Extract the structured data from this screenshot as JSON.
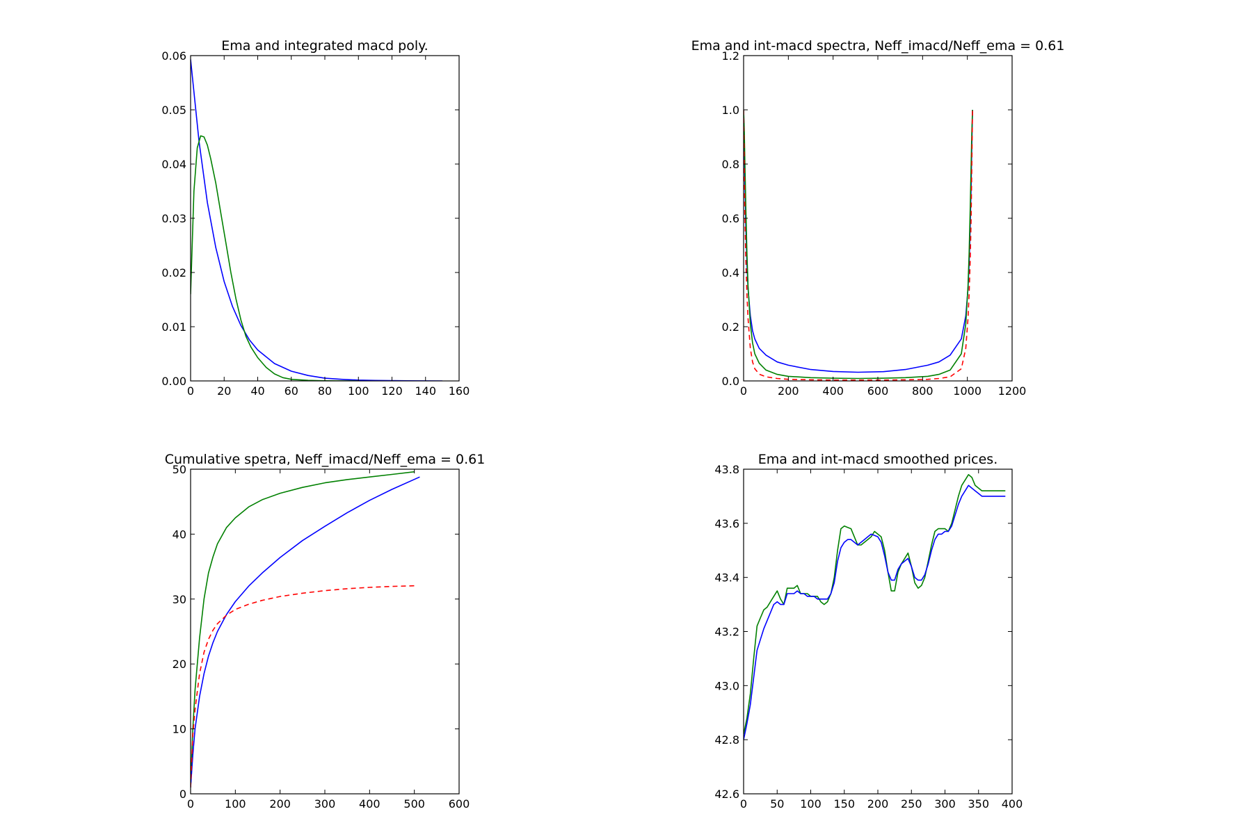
{
  "chart_data": [
    {
      "type": "line",
      "title": "Ema and integrated macd poly.",
      "xlabel": "",
      "ylabel": "",
      "xlim": [
        0,
        160
      ],
      "ylim": [
        0,
        0.06
      ],
      "xticks": [
        0,
        20,
        40,
        60,
        80,
        100,
        120,
        140,
        160
      ],
      "yticks": [
        0.0,
        0.01,
        0.02,
        0.03,
        0.04,
        0.05,
        0.06
      ],
      "xtick_labels": [
        "0",
        "20",
        "40",
        "60",
        "80",
        "100",
        "120",
        "140",
        "160"
      ],
      "ytick_labels": [
        "0.00",
        "0.01",
        "0.02",
        "0.03",
        "0.04",
        "0.05",
        "0.06"
      ],
      "grid": false,
      "series": [
        {
          "color": "#0000ff",
          "style": "solid",
          "x": [
            0,
            5,
            10,
            15,
            20,
            25,
            30,
            35,
            40,
            50,
            60,
            70,
            80,
            90,
            100,
            110,
            120,
            130,
            140,
            150
          ],
          "y": [
            0.0593,
            0.0442,
            0.0329,
            0.0246,
            0.0183,
            0.0137,
            0.0102,
            0.0076,
            0.0057,
            0.0032,
            0.0018,
            0.001,
            0.0005,
            0.0003,
            0.00016,
            9e-05,
            5e-05,
            3e-05,
            1e-05,
            0.0
          ]
        },
        {
          "color": "#008000",
          "style": "solid",
          "x": [
            0,
            2,
            4,
            6,
            8,
            10,
            12,
            15,
            18,
            21,
            24,
            27,
            30,
            33,
            36,
            40,
            45,
            50,
            55,
            60,
            70,
            80,
            90,
            100
          ],
          "y": [
            0.016,
            0.035,
            0.043,
            0.0452,
            0.045,
            0.0435,
            0.041,
            0.0365,
            0.031,
            0.0255,
            0.02,
            0.0152,
            0.0112,
            0.0082,
            0.0062,
            0.0043,
            0.0025,
            0.0013,
            0.0006,
            0.0003,
            0.0001,
            3e-05,
            1e-05,
            0.0
          ]
        }
      ]
    },
    {
      "type": "line",
      "title": "Ema and int-macd spectra, Neff_imacd/Neff_ema = 0.61",
      "xlabel": "",
      "ylabel": "",
      "xlim": [
        0,
        1200
      ],
      "ylim": [
        0,
        1.2
      ],
      "xticks": [
        0,
        200,
        400,
        600,
        800,
        1000,
        1200
      ],
      "yticks": [
        0.0,
        0.2,
        0.4,
        0.6,
        0.8,
        1.0,
        1.2
      ],
      "xtick_labels": [
        "0",
        "200",
        "400",
        "600",
        "800",
        "1000",
        "1200"
      ],
      "ytick_labels": [
        "0.0",
        "0.2",
        "0.4",
        "0.6",
        "0.8",
        "1.0",
        "1.2"
      ],
      "grid": false,
      "series": [
        {
          "color": "#0000ff",
          "style": "solid",
          "x": [
            0,
            3,
            6,
            10,
            15,
            20,
            30,
            40,
            50,
            70,
            100,
            150,
            200,
            300,
            400,
            511,
            623,
            723,
            823,
            873,
            923,
            973,
            993,
            1003,
            1008,
            1013,
            1017,
            1020,
            1023
          ],
          "y": [
            1.0,
            0.87,
            0.72,
            0.57,
            0.43,
            0.34,
            0.24,
            0.185,
            0.155,
            0.12,
            0.095,
            0.07,
            0.058,
            0.042,
            0.035,
            0.032,
            0.034,
            0.042,
            0.058,
            0.07,
            0.095,
            0.155,
            0.24,
            0.34,
            0.43,
            0.57,
            0.72,
            0.87,
            1.0
          ]
        },
        {
          "color": "#008000",
          "style": "solid",
          "x": [
            0,
            3,
            6,
            10,
            15,
            20,
            30,
            40,
            50,
            70,
            100,
            150,
            200,
            300,
            400,
            511,
            623,
            723,
            823,
            873,
            923,
            973,
            993,
            1003,
            1008,
            1013,
            1017,
            1020,
            1023
          ],
          "y": [
            1.0,
            0.92,
            0.8,
            0.64,
            0.47,
            0.35,
            0.21,
            0.14,
            0.1,
            0.065,
            0.04,
            0.024,
            0.017,
            0.012,
            0.01,
            0.009,
            0.01,
            0.012,
            0.017,
            0.024,
            0.04,
            0.1,
            0.21,
            0.35,
            0.47,
            0.64,
            0.8,
            0.92,
            1.0
          ]
        },
        {
          "color": "#ff0000",
          "style": "dashed",
          "x": [
            0,
            3,
            6,
            10,
            15,
            20,
            30,
            40,
            50,
            70,
            100,
            150,
            200,
            300,
            400,
            511,
            623,
            723,
            823,
            873,
            923,
            973,
            993,
            1003,
            1008,
            1013,
            1017,
            1020,
            1023
          ],
          "y": [
            1.0,
            0.8,
            0.6,
            0.45,
            0.32,
            0.23,
            0.12,
            0.07,
            0.045,
            0.025,
            0.015,
            0.009,
            0.006,
            0.004,
            0.003,
            0.003,
            0.003,
            0.004,
            0.006,
            0.009,
            0.015,
            0.045,
            0.12,
            0.23,
            0.32,
            0.45,
            0.6,
            0.8,
            1.0
          ]
        }
      ]
    },
    {
      "type": "line",
      "title": "Cumulative spetra, Neff_imacd/Neff_ema = 0.61",
      "xlabel": "",
      "ylabel": "",
      "xlim": [
        0,
        600
      ],
      "ylim": [
        0,
        50
      ],
      "xticks": [
        0,
        100,
        200,
        300,
        400,
        500,
        600
      ],
      "yticks": [
        0,
        10,
        20,
        30,
        40,
        50
      ],
      "xtick_labels": [
        "0",
        "100",
        "200",
        "300",
        "400",
        "500",
        "600"
      ],
      "ytick_labels": [
        "0",
        "10",
        "20",
        "30",
        "40",
        "50"
      ],
      "grid": false,
      "series": [
        {
          "color": "#008000",
          "style": "solid",
          "x": [
            0,
            5,
            10,
            20,
            30,
            40,
            50,
            60,
            80,
            100,
            130,
            160,
            200,
            250,
            300,
            350,
            400,
            450,
            500
          ],
          "y": [
            1,
            10,
            16,
            24,
            30,
            34,
            36.5,
            38.5,
            41,
            42.5,
            44.2,
            45.3,
            46.3,
            47.2,
            47.9,
            48.4,
            48.8,
            49.2,
            49.6
          ]
        },
        {
          "color": "#0000ff",
          "style": "solid",
          "x": [
            0,
            5,
            10,
            20,
            30,
            40,
            50,
            60,
            80,
            100,
            130,
            160,
            200,
            250,
            300,
            350,
            400,
            450,
            512
          ],
          "y": [
            1,
            6,
            10,
            15,
            18.5,
            21.2,
            23.3,
            25,
            27.6,
            29.6,
            32,
            34,
            36.4,
            39,
            41.2,
            43.3,
            45.2,
            46.9,
            48.8
          ]
        },
        {
          "color": "#ff0000",
          "style": "dashed",
          "x": [
            0,
            5,
            10,
            20,
            30,
            40,
            50,
            60,
            80,
            100,
            130,
            160,
            200,
            250,
            300,
            350,
            400,
            450,
            500
          ],
          "y": [
            1,
            9,
            13,
            18.5,
            21.8,
            23.8,
            25.2,
            26.2,
            27.5,
            28.4,
            29.2,
            29.8,
            30.4,
            30.9,
            31.3,
            31.6,
            31.8,
            31.95,
            32.05
          ]
        }
      ]
    },
    {
      "type": "line",
      "title": "Ema and int-macd smoothed prices.",
      "xlabel": "",
      "ylabel": "",
      "xlim": [
        0,
        400
      ],
      "ylim": [
        42.6,
        43.8
      ],
      "xticks": [
        0,
        50,
        100,
        150,
        200,
        250,
        300,
        350,
        400
      ],
      "yticks": [
        42.6,
        42.8,
        43.0,
        43.2,
        43.4,
        43.6,
        43.8
      ],
      "xtick_labels": [
        "0",
        "50",
        "100",
        "150",
        "200",
        "250",
        "300",
        "350",
        "400"
      ],
      "ytick_labels": [
        "42.6",
        "42.8",
        "43.0",
        "43.2",
        "43.4",
        "43.6",
        "43.8"
      ],
      "grid": false,
      "series": [
        {
          "color": "#008000",
          "style": "solid",
          "x": [
            0,
            5,
            10,
            15,
            20,
            25,
            30,
            35,
            40,
            45,
            50,
            55,
            60,
            65,
            70,
            75,
            80,
            85,
            90,
            95,
            100,
            105,
            110,
            115,
            120,
            125,
            130,
            135,
            140,
            145,
            150,
            155,
            160,
            165,
            170,
            175,
            180,
            185,
            190,
            195,
            200,
            205,
            210,
            215,
            220,
            225,
            230,
            235,
            240,
            245,
            250,
            255,
            260,
            265,
            270,
            275,
            280,
            285,
            290,
            295,
            300,
            305,
            310,
            315,
            320,
            325,
            330,
            335,
            340,
            345,
            350,
            355,
            360,
            365,
            370,
            375,
            380,
            385,
            390
          ],
          "y": [
            42.82,
            42.88,
            42.97,
            43.1,
            43.22,
            43.25,
            43.28,
            43.29,
            43.31,
            43.33,
            43.35,
            43.32,
            43.3,
            43.36,
            43.36,
            43.36,
            43.37,
            43.34,
            43.34,
            43.34,
            43.33,
            43.33,
            43.33,
            43.31,
            43.3,
            43.31,
            43.34,
            43.4,
            43.5,
            43.58,
            43.59,
            43.585,
            43.58,
            43.55,
            43.52,
            43.52,
            43.53,
            43.54,
            43.55,
            43.57,
            43.56,
            43.55,
            43.5,
            43.42,
            43.35,
            43.35,
            43.42,
            43.45,
            43.47,
            43.49,
            43.44,
            43.38,
            43.36,
            43.37,
            43.4,
            43.46,
            43.52,
            43.57,
            43.58,
            43.58,
            43.58,
            43.57,
            43.6,
            43.65,
            43.7,
            43.74,
            43.76,
            43.78,
            43.77,
            43.74,
            43.73,
            43.72,
            43.72,
            43.72,
            43.72,
            43.72,
            43.72,
            43.72,
            43.72
          ],
          "x_end": 390
        },
        {
          "color": "#0000ff",
          "style": "solid",
          "x": [
            0,
            5,
            10,
            15,
            20,
            25,
            30,
            35,
            40,
            45,
            50,
            55,
            60,
            65,
            70,
            75,
            80,
            85,
            90,
            95,
            100,
            105,
            110,
            115,
            120,
            125,
            130,
            135,
            140,
            145,
            150,
            155,
            160,
            165,
            170,
            175,
            180,
            185,
            190,
            195,
            200,
            205,
            210,
            215,
            220,
            225,
            230,
            235,
            240,
            245,
            250,
            255,
            260,
            265,
            270,
            275,
            280,
            285,
            290,
            295,
            300,
            305,
            310,
            315,
            320,
            325,
            330,
            335,
            340,
            345,
            350,
            355,
            360,
            365,
            370,
            375,
            380,
            385,
            390
          ],
          "y": [
            42.8,
            42.86,
            42.93,
            43.03,
            43.13,
            43.17,
            43.21,
            43.24,
            43.27,
            43.3,
            43.31,
            43.3,
            43.3,
            43.34,
            43.34,
            43.34,
            43.35,
            43.34,
            43.34,
            43.33,
            43.33,
            43.33,
            43.32,
            43.32,
            43.32,
            43.32,
            43.34,
            43.38,
            43.46,
            43.51,
            43.53,
            43.54,
            43.54,
            43.53,
            43.52,
            43.53,
            43.54,
            43.55,
            43.56,
            43.555,
            43.55,
            43.53,
            43.48,
            43.42,
            43.39,
            43.39,
            43.43,
            43.45,
            43.46,
            43.47,
            43.44,
            43.4,
            43.39,
            43.39,
            43.41,
            43.45,
            43.5,
            43.54,
            43.56,
            43.56,
            43.57,
            43.57,
            43.59,
            43.63,
            43.67,
            43.7,
            43.72,
            43.74,
            43.73,
            43.72,
            43.71,
            43.7,
            43.7,
            43.7,
            43.7,
            43.7,
            43.7,
            43.7,
            43.7
          ],
          "x_end": 390
        }
      ]
    }
  ]
}
